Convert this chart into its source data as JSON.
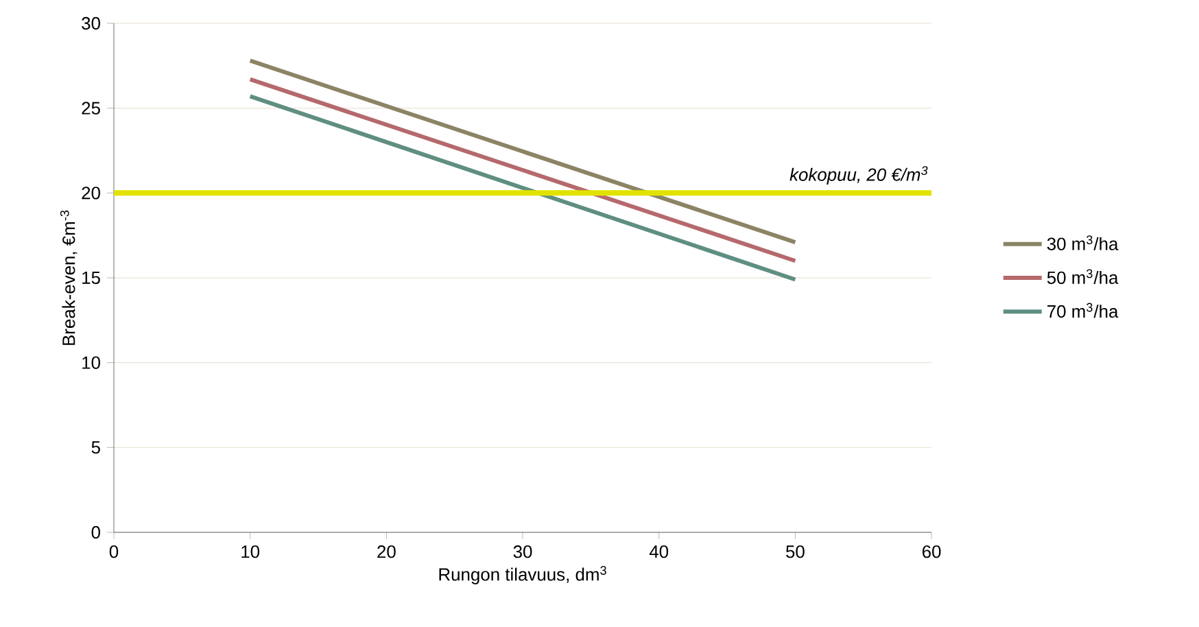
{
  "chart_data": {
    "type": "line",
    "xlabel": "Rungon tilavuus, dm$^{3}$",
    "ylabel": "Break-even, €m$^{-3}$",
    "x": [
      10,
      50
    ],
    "series": [
      {
        "name": "30 m$^{3}$/ha",
        "color": "#8b8465",
        "values": [
          27.8,
          17.1
        ]
      },
      {
        "name": "50 m$^{3}$/ha",
        "color": "#b5696c",
        "values": [
          26.7,
          16.0
        ]
      },
      {
        "name": "70 m$^{3}$/ha",
        "color": "#5f8e82",
        "values": [
          25.7,
          14.9
        ]
      }
    ],
    "xlim": [
      0,
      60
    ],
    "xticks": [
      0,
      10,
      20,
      30,
      40,
      50,
      60
    ],
    "ylim": [
      0,
      30
    ],
    "yticks": [
      0,
      5,
      10,
      15,
      20,
      25,
      30
    ],
    "ref_lines": [
      {
        "axis": "y",
        "value": 20,
        "label": "kokopuu, 20 €/m$^{3}$",
        "color": "#e2e200",
        "line_style": "solid"
      }
    ],
    "grid": "y",
    "legend": "right",
    "marker": "none",
    "line_style": "solid"
  }
}
